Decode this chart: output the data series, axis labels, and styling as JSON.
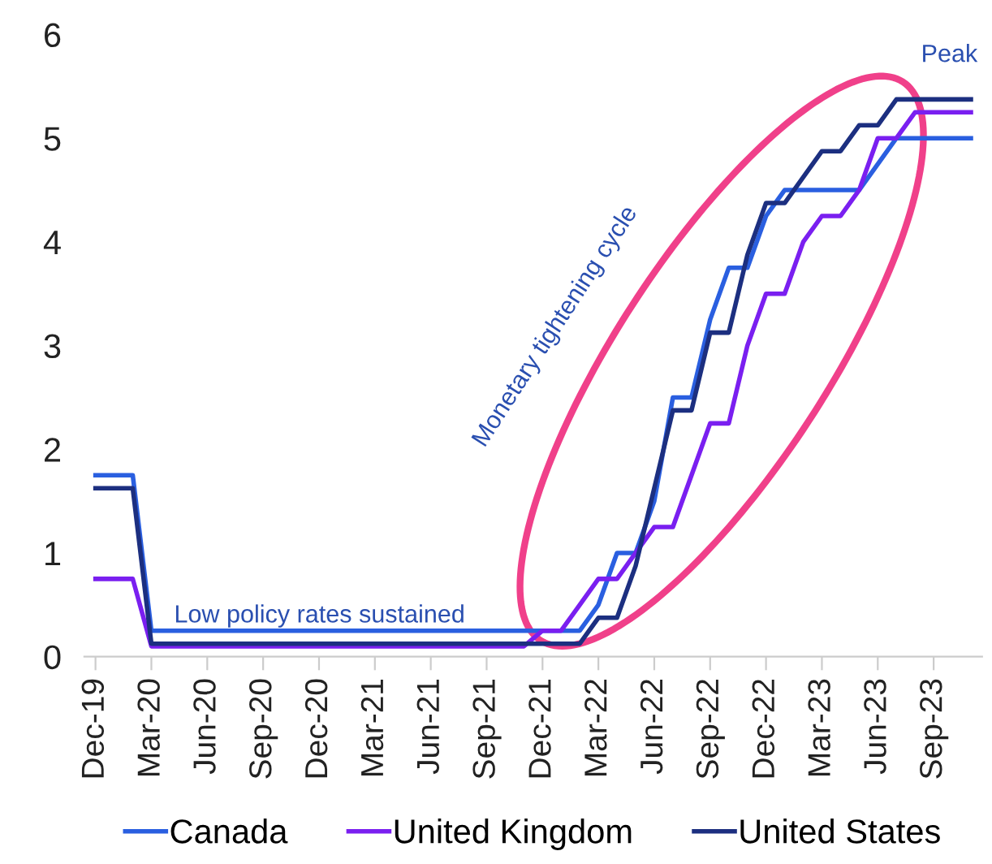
{
  "chart_data": {
    "type": "line",
    "categories": [
      "Dec-19",
      null,
      null,
      "Mar-20",
      null,
      null,
      "Jun-20",
      null,
      null,
      "Sep-20",
      null,
      null,
      "Dec-20",
      null,
      null,
      "Mar-21",
      null,
      null,
      "Jun-21",
      null,
      null,
      "Sep-21",
      null,
      null,
      "Dec-21",
      null,
      null,
      "Mar-22",
      null,
      null,
      "Jun-22",
      null,
      null,
      "Sep-22",
      null,
      null,
      "Dec-22",
      null,
      null,
      "Mar-23",
      null,
      null,
      "Jun-23",
      null,
      null,
      "Sep-23",
      null,
      null
    ],
    "series": [
      {
        "name": "Canada",
        "color": "#2a5fe0",
        "values": [
          1.75,
          1.75,
          1.75,
          0.25,
          0.25,
          0.25,
          0.25,
          0.25,
          0.25,
          0.25,
          0.25,
          0.25,
          0.25,
          0.25,
          0.25,
          0.25,
          0.25,
          0.25,
          0.25,
          0.25,
          0.25,
          0.25,
          0.25,
          0.25,
          0.25,
          0.25,
          0.25,
          0.5,
          1.0,
          1.0,
          1.5,
          2.5,
          2.5,
          3.25,
          3.75,
          3.75,
          4.25,
          4.5,
          4.5,
          4.5,
          4.5,
          4.5,
          4.75,
          5.0,
          5.0,
          5.0,
          5.0,
          5.0
        ]
      },
      {
        "name": "United Kingdom",
        "color": "#7a1ff0",
        "values": [
          0.75,
          0.75,
          0.75,
          0.1,
          0.1,
          0.1,
          0.1,
          0.1,
          0.1,
          0.1,
          0.1,
          0.1,
          0.1,
          0.1,
          0.1,
          0.1,
          0.1,
          0.1,
          0.1,
          0.1,
          0.1,
          0.1,
          0.1,
          0.1,
          0.25,
          0.25,
          0.5,
          0.75,
          0.75,
          1.0,
          1.25,
          1.25,
          1.75,
          2.25,
          2.25,
          3.0,
          3.5,
          3.5,
          4.0,
          4.25,
          4.25,
          4.5,
          5.0,
          5.0,
          5.25,
          5.25,
          5.25,
          5.25
        ]
      },
      {
        "name": "United States",
        "color": "#1c2f80",
        "values": [
          1.625,
          1.625,
          1.625,
          0.125,
          0.125,
          0.125,
          0.125,
          0.125,
          0.125,
          0.125,
          0.125,
          0.125,
          0.125,
          0.125,
          0.125,
          0.125,
          0.125,
          0.125,
          0.125,
          0.125,
          0.125,
          0.125,
          0.125,
          0.125,
          0.125,
          0.125,
          0.125,
          0.375,
          0.375,
          0.875,
          1.625,
          2.375,
          2.375,
          3.125,
          3.125,
          3.875,
          4.375,
          4.375,
          4.625,
          4.875,
          4.875,
          5.125,
          5.125,
          5.375,
          5.375,
          5.375,
          5.375,
          5.375
        ]
      }
    ],
    "ylim": [
      0,
      6
    ],
    "yticks": [
      0,
      1,
      2,
      3,
      4,
      5,
      6
    ],
    "grid": false,
    "legend": "bottom",
    "marker": "none",
    "line_style": "solid",
    "annotations": [
      "Low policy rates sustained",
      "Monetary tightening cycle",
      "Peak"
    ]
  }
}
